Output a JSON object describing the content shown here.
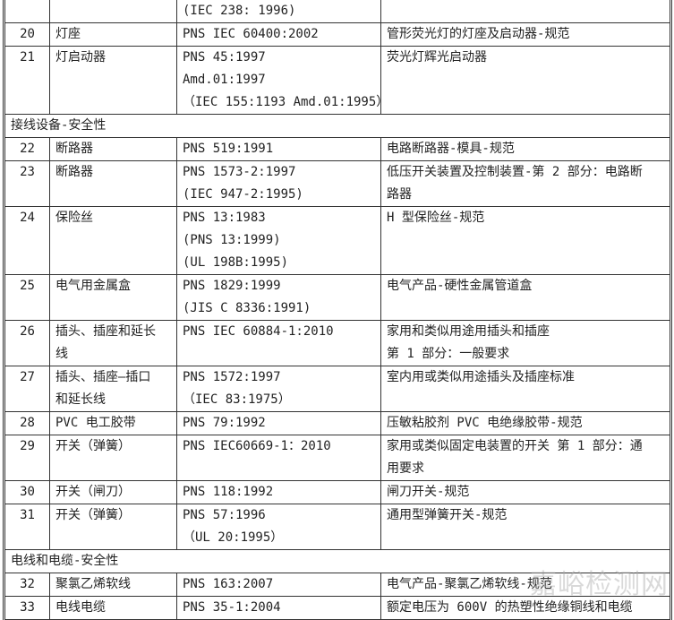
{
  "rows": [
    {
      "num": "",
      "item": [
        ""
      ],
      "standard": [
        "(IEC 238: 1996)"
      ],
      "title": [
        ""
      ]
    },
    {
      "num": "20",
      "item": [
        "灯座"
      ],
      "standard": [
        "PNS IEC 60400:2002"
      ],
      "title": [
        "管形荧光灯的灯座及启动器-规范"
      ]
    },
    {
      "num": "21",
      "item": [
        "灯启动器"
      ],
      "standard": [
        "PNS 45:1997",
        "Amd.01:1997",
        "（IEC 155:1193 Amd.01:1995）"
      ],
      "title": [
        "荧光灯辉光启动器"
      ]
    },
    {
      "section": "接线设备-安全性"
    },
    {
      "num": "22",
      "item": [
        "断路器"
      ],
      "standard": [
        "PNS 519:1991"
      ],
      "title": [
        "电路断路器-模具-规范"
      ]
    },
    {
      "num": "23",
      "item": [
        "断路器"
      ],
      "standard": [
        "PNS 1573-2:1997",
        "(IEC 947-2:1995)"
      ],
      "title": [
        "低压开关装置及控制装置-第 2 部分：电路断",
        "路器"
      ]
    },
    {
      "num": "24",
      "item": [
        "保险丝"
      ],
      "standard": [
        "PNS 13:1983",
        "(PNS 13:1999)",
        "(UL 198B:1995)"
      ],
      "title": [
        "H 型保险丝-规范"
      ]
    },
    {
      "num": "25",
      "item": [
        "电气用金属盒"
      ],
      "standard": [
        "PNS 1829:1999",
        "(JIS C 8336:1991)"
      ],
      "title": [
        "电气产品-硬性金属管道盒"
      ]
    },
    {
      "num": "26",
      "item": [
        "插头、插座和延长",
        "线"
      ],
      "standard": [
        "PNS IEC 60884-1:2010"
      ],
      "title": [
        "家用和类似用途用插头和插座",
        "第 1 部分：一般要求"
      ]
    },
    {
      "num": "27",
      "item": [
        "插头、插座—插口",
        "和延长线"
      ],
      "standard": [
        "PNS 1572:1997",
        "（IEC 83:1975）"
      ],
      "title": [
        "室内用或类似用途插头及插座标准"
      ]
    },
    {
      "num": "28",
      "item": [
        "PVC 电工胶带"
      ],
      "standard": [
        "PNS 79:1992"
      ],
      "title": [
        "压敏粘胶剂 PVC 电绝缘胶带-规范"
      ]
    },
    {
      "num": "29",
      "item": [
        "开关（弹簧）"
      ],
      "standard": [
        "PNS IEC60669-1：2010"
      ],
      "title": [
        "家用或类似固定电装置的开关 第 1 部分：通",
        "用要求"
      ]
    },
    {
      "num": "30",
      "item": [
        "开关（闸刀）"
      ],
      "standard": [
        "PNS 118:1992"
      ],
      "title": [
        "闸刀开关-规范"
      ]
    },
    {
      "num": "31",
      "item": [
        "开关（弹簧）"
      ],
      "standard": [
        "PNS 57:1996",
        "（UL 20:1995）"
      ],
      "title": [
        "通用型弹簧开关-规范"
      ]
    },
    {
      "section": "电线和电缆-安全性"
    },
    {
      "num": "32",
      "item": [
        "聚氯乙烯软线"
      ],
      "standard": [
        "PNS 163:2007"
      ],
      "title": [
        "电气产品-聚氯乙烯软线-规范"
      ]
    },
    {
      "num": "33",
      "item": [
        "电线电缆"
      ],
      "standard": [
        "PNS 35-1:2004"
      ],
      "title": [
        "额定电压为 600V 的热塑性绝缘铜线和电缆"
      ]
    }
  ],
  "watermark": "嘉峪检测网"
}
